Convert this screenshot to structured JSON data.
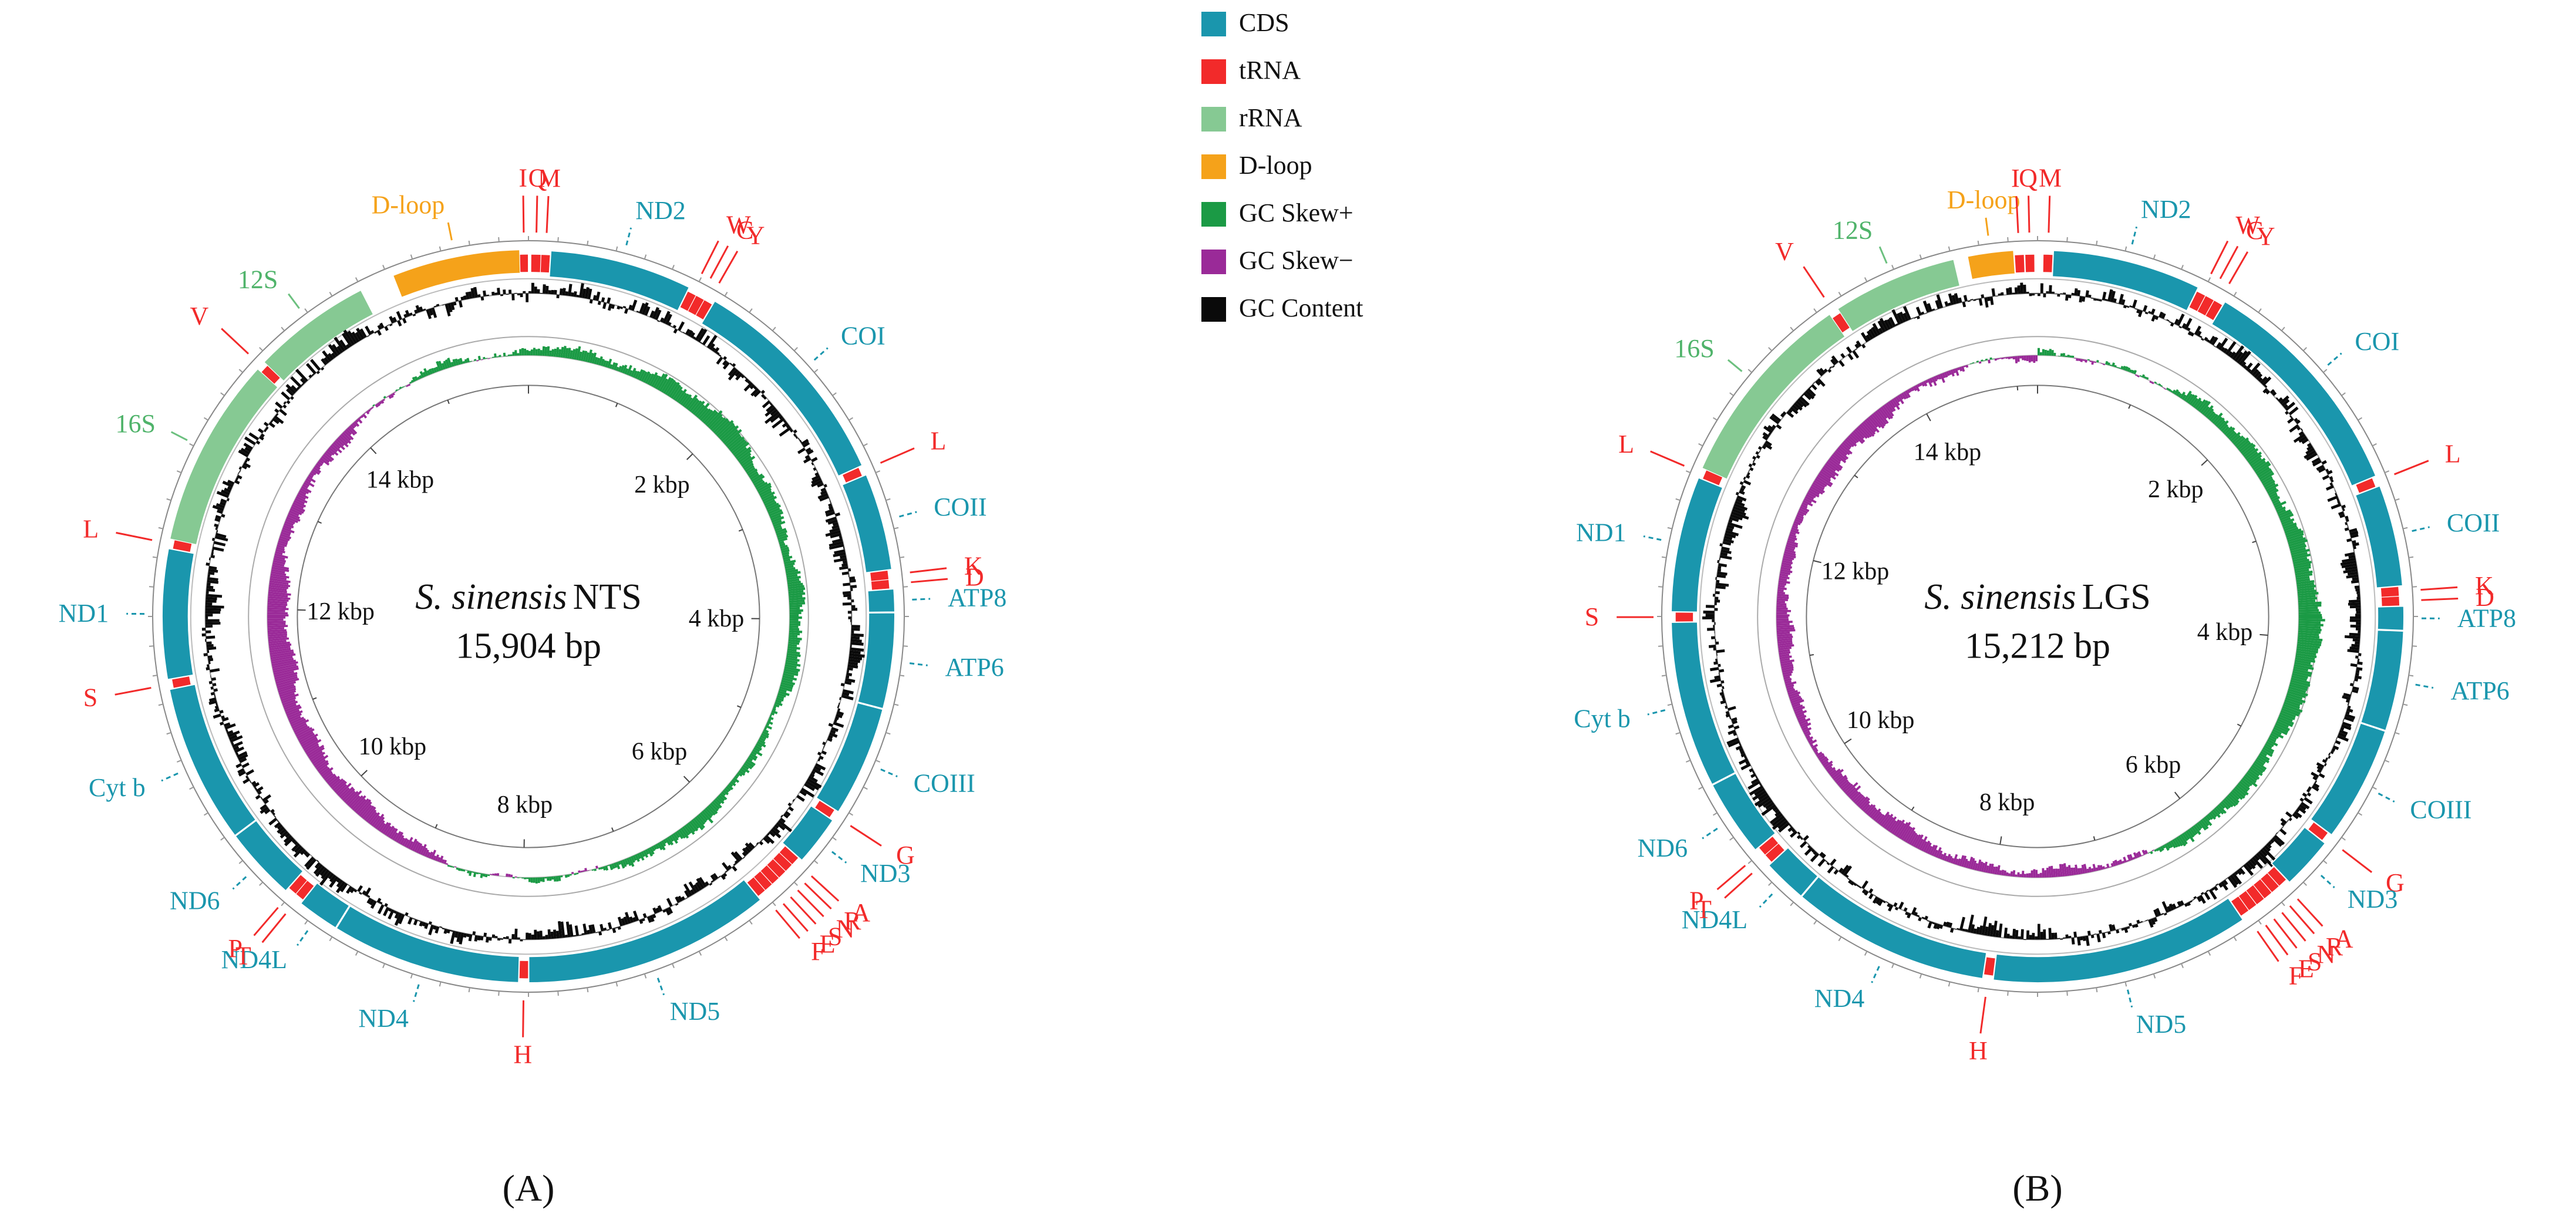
{
  "colors": {
    "cds": "#1a96ad",
    "trna": "#f22a2a",
    "rrna": "#86c993",
    "dloop": "#f5a21a",
    "gc_skew_pos": "#1b9a45",
    "gc_skew_neg": "#9a2a98",
    "gc_content": "#0a0a0a"
  },
  "legend": [
    {
      "label": "CDS",
      "color": "#1a96ad"
    },
    {
      "label": "tRNA",
      "color": "#f22a2a"
    },
    {
      "label": "rRNA",
      "color": "#86c993"
    },
    {
      "label": "D-loop",
      "color": "#f5a21a"
    },
    {
      "label": "GC Skew+",
      "color": "#1b9a45"
    },
    {
      "label": "GC Skew−",
      "color": "#9a2a98"
    },
    {
      "label": "GC Content",
      "color": "#0a0a0a"
    }
  ],
  "maps": [
    {
      "panel": "(A)",
      "species": "S. sinensis",
      "strain": "NTS",
      "length_label": "15,904 bp",
      "length_bp": 15904,
      "kbp_labels": [
        "2 kbp",
        "4 kbp",
        "6 kbp",
        "8 kbp",
        "10 kbp",
        "12 kbp",
        "14 kbp"
      ],
      "features": [
        {
          "name": "D-loop",
          "type": "dloop",
          "start": 14950,
          "end": 15840
        },
        {
          "name": "I",
          "type": "trna",
          "start": 15845,
          "end": 15900
        },
        {
          "name": "Q",
          "type": "trna",
          "start": 20,
          "end": 85
        },
        {
          "name": "M",
          "type": "trna",
          "start": 90,
          "end": 150
        },
        {
          "name": "ND2",
          "type": "cds",
          "start": 155,
          "end": 1150
        },
        {
          "name": "W",
          "type": "trna",
          "start": 1155,
          "end": 1215
        },
        {
          "name": "C",
          "type": "trna",
          "start": 1220,
          "end": 1280
        },
        {
          "name": "Y",
          "type": "trna",
          "start": 1285,
          "end": 1345
        },
        {
          "name": "COI",
          "type": "cds",
          "start": 1350,
          "end": 2900
        },
        {
          "name": "L",
          "type": "trna",
          "start": 2905,
          "end": 2965
        },
        {
          "name": "COII",
          "type": "cds",
          "start": 2970,
          "end": 3650
        },
        {
          "name": "K",
          "type": "trna",
          "start": 3655,
          "end": 3715
        },
        {
          "name": "D",
          "type": "trna",
          "start": 3720,
          "end": 3780
        },
        {
          "name": "ATP8",
          "type": "cds",
          "start": 3785,
          "end": 3945
        },
        {
          "name": "ATP6",
          "type": "cds",
          "start": 3950,
          "end": 4620
        },
        {
          "name": "COIII",
          "type": "cds",
          "start": 4625,
          "end": 5400
        },
        {
          "name": "G",
          "type": "trna",
          "start": 5405,
          "end": 5465
        },
        {
          "name": "ND3",
          "type": "cds",
          "start": 5470,
          "end": 5820
        },
        {
          "name": "A",
          "type": "trna",
          "start": 5825,
          "end": 5885
        },
        {
          "name": "R",
          "type": "trna",
          "start": 5890,
          "end": 5950
        },
        {
          "name": "N",
          "type": "trna",
          "start": 5955,
          "end": 6015
        },
        {
          "name": "S",
          "type": "trna",
          "start": 6020,
          "end": 6080
        },
        {
          "name": "E",
          "type": "trna",
          "start": 6085,
          "end": 6145
        },
        {
          "name": "F",
          "type": "trna",
          "start": 6150,
          "end": 6210
        },
        {
          "name": "ND5",
          "type": "cds",
          "start": 6215,
          "end": 7950
        },
        {
          "name": "H",
          "type": "trna",
          "start": 7955,
          "end": 8015
        },
        {
          "name": "ND4",
          "type": "cds",
          "start": 8020,
          "end": 9350
        },
        {
          "name": "ND4L",
          "type": "cds",
          "start": 9355,
          "end": 9650
        },
        {
          "name": "T",
          "type": "trna",
          "start": 9655,
          "end": 9715
        },
        {
          "name": "P",
          "type": "trna",
          "start": 9720,
          "end": 9780
        },
        {
          "name": "ND6",
          "type": "cds",
          "start": 9785,
          "end": 10300
        },
        {
          "name": "Cyt b",
          "type": "cds",
          "start": 10305,
          "end": 11420
        },
        {
          "name": "S",
          "type": "trna",
          "start": 11425,
          "end": 11485
        },
        {
          "name": "ND1",
          "type": "cds",
          "start": 11490,
          "end": 12400
        },
        {
          "name": "L",
          "type": "trna",
          "start": 12405,
          "end": 12465
        },
        {
          "name": "16S",
          "type": "rrna",
          "start": 12470,
          "end": 13800
        },
        {
          "name": "V",
          "type": "trna",
          "start": 13805,
          "end": 13865
        },
        {
          "name": "12S",
          "type": "rrna",
          "start": 13870,
          "end": 14700
        }
      ]
    },
    {
      "panel": "(B)",
      "species": "S. sinensis",
      "strain": "LGS",
      "length_label": "15,212 bp",
      "length_bp": 15212,
      "kbp_labels": [
        "2 kbp",
        "4 kbp",
        "6 kbp",
        "8 kbp",
        "10 kbp",
        "12 kbp",
        "14 kbp"
      ],
      "features": [
        {
          "name": "D-loop",
          "type": "dloop",
          "start": 14750,
          "end": 15050
        },
        {
          "name": "I",
          "type": "trna",
          "start": 15060,
          "end": 15120
        },
        {
          "name": "Q",
          "type": "trna",
          "start": 15130,
          "end": 15190
        },
        {
          "name": "M",
          "type": "trna",
          "start": 40,
          "end": 100
        },
        {
          "name": "ND2",
          "type": "cds",
          "start": 105,
          "end": 1100
        },
        {
          "name": "W",
          "type": "trna",
          "start": 1105,
          "end": 1165
        },
        {
          "name": "C",
          "type": "trna",
          "start": 1170,
          "end": 1230
        },
        {
          "name": "Y",
          "type": "trna",
          "start": 1235,
          "end": 1295
        },
        {
          "name": "COI",
          "type": "cds",
          "start": 1300,
          "end": 2850
        },
        {
          "name": "L",
          "type": "trna",
          "start": 2855,
          "end": 2915
        },
        {
          "name": "COII",
          "type": "cds",
          "start": 2920,
          "end": 3600
        },
        {
          "name": "K",
          "type": "trna",
          "start": 3605,
          "end": 3665
        },
        {
          "name": "D",
          "type": "trna",
          "start": 3670,
          "end": 3730
        },
        {
          "name": "ATP8",
          "type": "cds",
          "start": 3735,
          "end": 3895
        },
        {
          "name": "ATP6",
          "type": "cds",
          "start": 3900,
          "end": 4570
        },
        {
          "name": "COIII",
          "type": "cds",
          "start": 4575,
          "end": 5350
        },
        {
          "name": "G",
          "type": "trna",
          "start": 5355,
          "end": 5415
        },
        {
          "name": "ND3",
          "type": "cds",
          "start": 5420,
          "end": 5770
        },
        {
          "name": "A",
          "type": "trna",
          "start": 5775,
          "end": 5835
        },
        {
          "name": "R",
          "type": "trna",
          "start": 5840,
          "end": 5900
        },
        {
          "name": "N",
          "type": "trna",
          "start": 5905,
          "end": 5965
        },
        {
          "name": "S",
          "type": "trna",
          "start": 5970,
          "end": 6030
        },
        {
          "name": "E",
          "type": "trna",
          "start": 6035,
          "end": 6095
        },
        {
          "name": "F",
          "type": "trna",
          "start": 6100,
          "end": 6160
        },
        {
          "name": "ND5",
          "type": "cds",
          "start": 6165,
          "end": 7900
        },
        {
          "name": "H",
          "type": "trna",
          "start": 7905,
          "end": 7965
        },
        {
          "name": "ND4",
          "type": "cds",
          "start": 7970,
          "end": 9300
        },
        {
          "name": "ND4L",
          "type": "cds",
          "start": 9305,
          "end": 9600
        },
        {
          "name": "T",
          "type": "trna",
          "start": 9605,
          "end": 9665
        },
        {
          "name": "P",
          "type": "trna",
          "start": 9670,
          "end": 9730
        },
        {
          "name": "ND6",
          "type": "cds",
          "start": 9735,
          "end": 10250
        },
        {
          "name": "Cyt b",
          "type": "cds",
          "start": 10255,
          "end": 11370
        },
        {
          "name": "S",
          "type": "trna",
          "start": 11375,
          "end": 11435
        },
        {
          "name": "ND1",
          "type": "cds",
          "start": 11440,
          "end": 12350
        },
        {
          "name": "L",
          "type": "trna",
          "start": 12355,
          "end": 12415
        },
        {
          "name": "16S",
          "type": "rrna",
          "start": 12420,
          "end": 13750
        },
        {
          "name": "V",
          "type": "trna",
          "start": 13755,
          "end": 13815
        },
        {
          "name": "12S",
          "type": "rrna",
          "start": 13820,
          "end": 14650
        }
      ]
    }
  ]
}
